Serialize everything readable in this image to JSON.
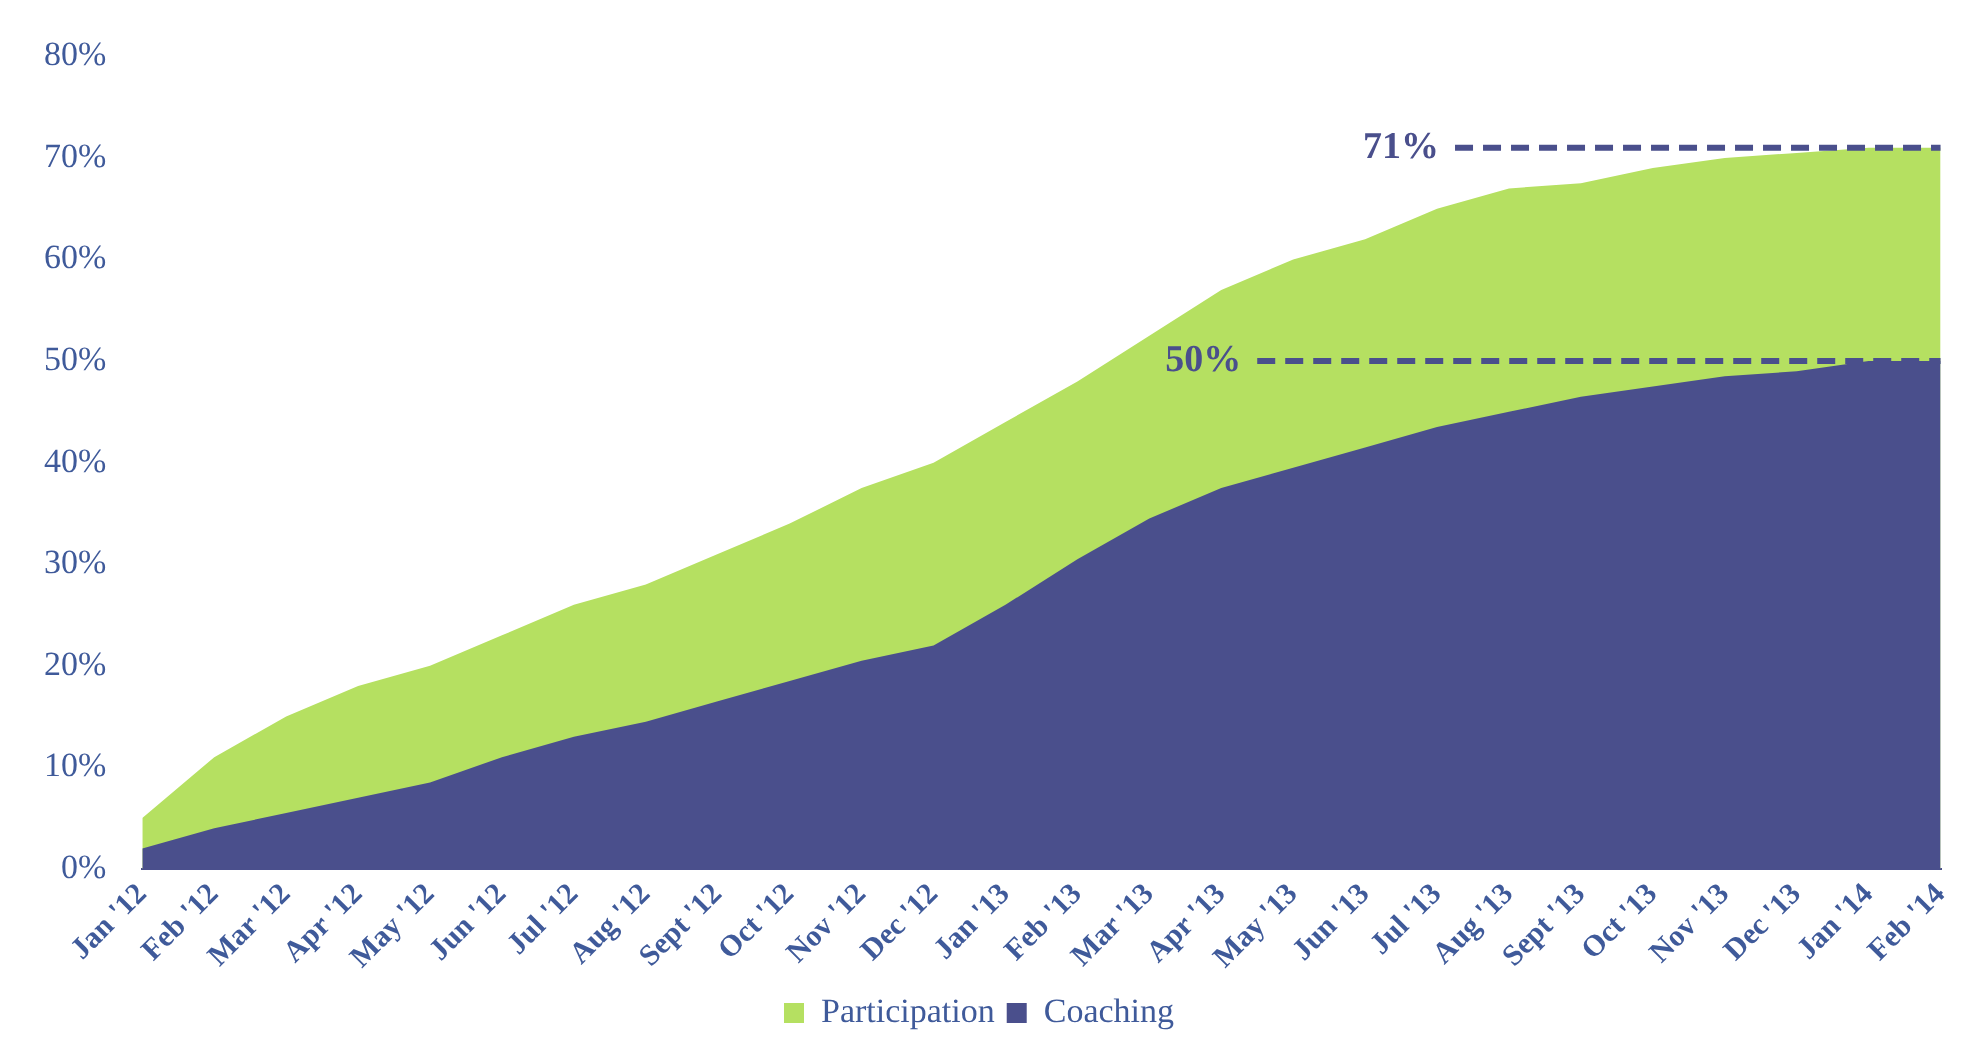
{
  "chart_data": {
    "type": "area",
    "categories": [
      "Jan '12",
      "Feb '12",
      "Mar '12",
      "Apr '12",
      "May '12",
      "Jun '12",
      "Jul '12",
      "Aug '12",
      "Sept '12",
      "Oct '12",
      "Nov '12",
      "Dec '12",
      "Jan '13",
      "Feb '13",
      "Mar '13",
      "Apr '13",
      "May '13",
      "Jun '13",
      "Jul '13",
      "Aug '13",
      "Sept '13",
      "Oct '13",
      "Nov '13",
      "Dec '13",
      "Jan '14",
      "Feb '14"
    ],
    "series": [
      {
        "name": "Participation",
        "color": "#b5e061",
        "values": [
          5,
          11,
          15,
          18,
          20,
          23,
          26,
          28,
          31,
          34,
          37.5,
          40,
          44,
          48,
          52.5,
          57,
          60,
          62,
          65,
          67,
          67.5,
          69,
          70,
          70.5,
          71,
          71
        ]
      },
      {
        "name": "Coaching",
        "color": "#4a4f8c",
        "values": [
          2,
          4,
          5.5,
          7,
          8.5,
          11,
          13,
          14.5,
          16.5,
          18.5,
          20.5,
          22,
          26,
          30.5,
          34.5,
          37.5,
          39.5,
          41.5,
          43.5,
          45,
          46.5,
          47.5,
          48.5,
          49,
          50,
          50
        ]
      }
    ],
    "ylim": [
      0,
      80
    ],
    "yticks": [
      {
        "value": 0,
        "label": "0%"
      },
      {
        "value": 10,
        "label": "10%"
      },
      {
        "value": 20,
        "label": "20%"
      },
      {
        "value": 30,
        "label": "30%"
      },
      {
        "value": 40,
        "label": "40%"
      },
      {
        "value": 50,
        "label": "50%"
      },
      {
        "value": 60,
        "label": "60%"
      },
      {
        "value": 70,
        "label": "70%"
      },
      {
        "value": 80,
        "label": "80%"
      }
    ],
    "ref_lines": [
      {
        "axis": "y",
        "value": 71,
        "label": "71%",
        "color": "#4a4f8c",
        "line_style": "dashed"
      },
      {
        "axis": "y",
        "value": 50,
        "label": "50%",
        "color": "#4a4f8c",
        "line_style": "dashed"
      }
    ],
    "grid": false,
    "legend": "bottom"
  }
}
